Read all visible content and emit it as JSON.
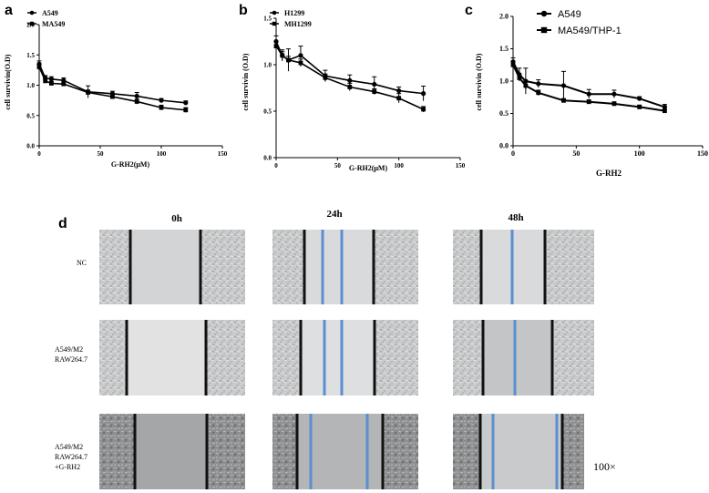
{
  "panel_labels": [
    "a",
    "b",
    "c",
    "d"
  ],
  "chart_data": [
    {
      "type": "line",
      "panel": "a",
      "title": "",
      "xlabel": "G-RH2(μM)",
      "ylabel": "cell survivin(O.D)",
      "xlim": [
        0,
        150
      ],
      "ylim": [
        0.0,
        2.0
      ],
      "xticks": [
        0,
        50,
        100,
        150
      ],
      "yticks": [
        0.0,
        0.5,
        1.0,
        1.5,
        2.0
      ],
      "ytick_labels": [
        "0.0",
        "0.5",
        "1.0",
        "1.5",
        "2.0"
      ],
      "legend_position": "top-left",
      "series": [
        {
          "name": "A549",
          "marker": "circle",
          "x": [
            0,
            5,
            10,
            20,
            40,
            60,
            80,
            100,
            120
          ],
          "y": [
            1.35,
            1.12,
            1.1,
            1.08,
            0.89,
            0.86,
            0.82,
            0.75,
            0.71
          ],
          "err": [
            0.05,
            0.04,
            0.04,
            0.04,
            0.1,
            0.04,
            0.06,
            0.03,
            0.03
          ]
        },
        {
          "name": "MA549",
          "marker": "square",
          "x": [
            0,
            5,
            10,
            20,
            40,
            60,
            80,
            100,
            120
          ],
          "y": [
            1.3,
            1.07,
            1.03,
            1.02,
            0.88,
            0.81,
            0.73,
            0.63,
            0.59
          ],
          "err": [
            0.05,
            0.03,
            0.03,
            0.03,
            0.04,
            0.03,
            0.04,
            0.04,
            0.04
          ]
        }
      ]
    },
    {
      "type": "line",
      "panel": "b",
      "title": "",
      "xlabel": "G-RH2(μM)",
      "ylabel": "cell survivin (O.D)",
      "xlim": [
        0,
        150
      ],
      "ylim": [
        0.0,
        1.5
      ],
      "xticks": [
        0,
        50,
        100,
        150
      ],
      "yticks": [
        0.0,
        0.5,
        1.0,
        1.5
      ],
      "ytick_labels": [
        "0.0",
        "0.5",
        "1.0",
        "1.5"
      ],
      "legend_position": "top-left",
      "series": [
        {
          "name": "H1299",
          "marker": "circle",
          "x": [
            0,
            5,
            10,
            20,
            40,
            60,
            80,
            100,
            120
          ],
          "y": [
            1.25,
            1.1,
            1.05,
            1.1,
            0.88,
            0.83,
            0.79,
            0.72,
            0.69
          ],
          "err": [
            0.06,
            0.06,
            0.12,
            0.1,
            0.06,
            0.06,
            0.08,
            0.04,
            0.08
          ]
        },
        {
          "name": "MH1299",
          "marker": "square",
          "x": [
            0,
            5,
            10,
            20,
            40,
            60,
            80,
            100,
            120
          ],
          "y": [
            1.2,
            1.1,
            1.05,
            1.02,
            0.86,
            0.76,
            0.71,
            0.64,
            0.52
          ],
          "err": [
            0.05,
            0.04,
            0.04,
            0.04,
            0.04,
            0.04,
            0.03,
            0.05,
            0.03
          ]
        }
      ]
    },
    {
      "type": "line",
      "panel": "c",
      "title": "",
      "xlabel": "G-RH2",
      "ylabel": "cell survivin (O.D)",
      "xlim": [
        0,
        150
      ],
      "ylim": [
        0.0,
        2.0
      ],
      "xticks": [
        0,
        50,
        100,
        150
      ],
      "yticks": [
        0.0,
        0.5,
        1.0,
        1.5,
        2.0
      ],
      "ytick_labels": [
        "0.0",
        "0.5",
        "1.0",
        "1.5",
        "2.0"
      ],
      "legend_position": "top-center",
      "series": [
        {
          "name": "A549",
          "marker": "circle",
          "x": [
            0,
            5,
            10,
            20,
            40,
            60,
            80,
            100,
            120
          ],
          "y": [
            1.3,
            1.1,
            1.0,
            0.96,
            0.93,
            0.8,
            0.8,
            0.73,
            0.6
          ],
          "err": [
            0.06,
            0.1,
            0.2,
            0.06,
            0.22,
            0.07,
            0.06,
            0.03,
            0.04
          ]
        },
        {
          "name": "MA549/THP-1",
          "marker": "square",
          "x": [
            0,
            5,
            10,
            20,
            40,
            60,
            80,
            100,
            120
          ],
          "y": [
            1.25,
            1.05,
            0.93,
            0.82,
            0.7,
            0.68,
            0.65,
            0.6,
            0.54
          ],
          "err": [
            0.05,
            0.05,
            0.06,
            0.04,
            0.03,
            0.03,
            0.03,
            0.03,
            0.03
          ]
        }
      ]
    }
  ],
  "wound_assay": {
    "panel_label": "d",
    "columns": [
      "0h",
      "24h",
      "48h"
    ],
    "rows": [
      {
        "label_lines": [
          "NC"
        ]
      },
      {
        "label_lines": [
          "A549/M2",
          "RAW264.7"
        ]
      },
      {
        "label_lines": [
          "A549/M2",
          "RAW264.7",
          "+G-RH2"
        ]
      }
    ],
    "magnification": "100×",
    "colors": {
      "edge_line": "#111111",
      "front_line": "#5b8fd0",
      "cell_fill": "#c9cbcc",
      "wound_fill": "#dcdcdc",
      "dark_fill": "#8d8f90"
    }
  }
}
